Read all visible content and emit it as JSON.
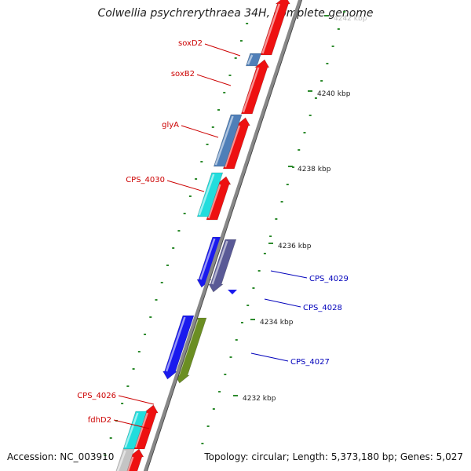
{
  "title": "Colwellia psychrerythraea 34H, complete genome",
  "accession": "Accession: NC_003910",
  "topology": "Topology: circular; Length: 5,373,180 bp; Genes: 5,027",
  "colors": {
    "backbone": "#888888",
    "tick": "#2e8b2e",
    "label_forward": "#cc0000",
    "label_reverse": "#0000bb",
    "gene_red": "#ee1111",
    "gene_steel": "#4f7fb8",
    "gene_cyan": "#22dddd",
    "gene_blue": "#1a1aee",
    "gene_slate": "#5a5a96",
    "gene_olive": "#6b8e23",
    "gene_grey": "#c4c4c4"
  },
  "scale_labels": [
    {
      "text": "4242 kbp",
      "faded": true
    },
    {
      "text": "4240 kbp"
    },
    {
      "text": "4238 kbp"
    },
    {
      "text": "4236 kbp"
    },
    {
      "text": "4234 kbp"
    },
    {
      "text": "4232 kbp"
    }
  ],
  "gene_labels": [
    {
      "text": "soxD2",
      "strand": "forward"
    },
    {
      "text": "soxB2",
      "strand": "forward"
    },
    {
      "text": "glyA",
      "strand": "forward"
    },
    {
      "text": "CPS_4030",
      "strand": "forward"
    },
    {
      "text": "CPS_4029",
      "strand": "reverse"
    },
    {
      "text": "CPS_4028",
      "strand": "reverse"
    },
    {
      "text": "CPS_4027",
      "strand": "reverse"
    },
    {
      "text": "CPS_4026",
      "strand": "forward"
    },
    {
      "text": "fdhD2",
      "strand": "forward"
    }
  ]
}
